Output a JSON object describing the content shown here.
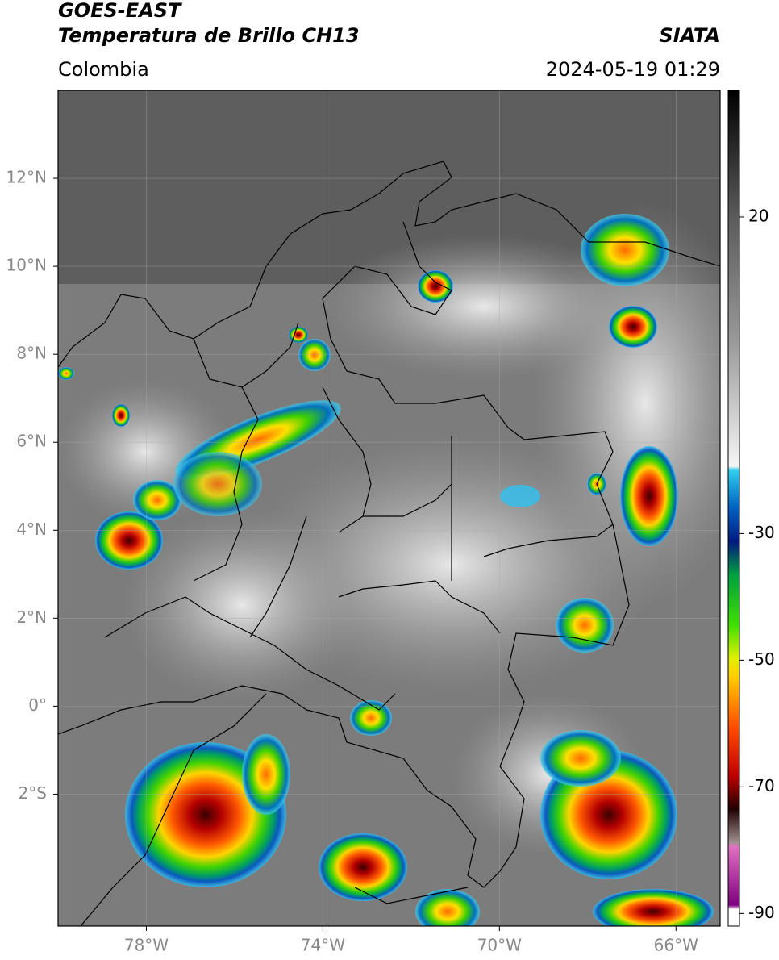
{
  "header": {
    "title": "GOES-EAST",
    "subtitle": "Temperatura de Brillo CH13",
    "source": "SIATA",
    "region": "Colombia",
    "datetime": "2024-05-19 01:29"
  },
  "map": {
    "xlim": [
      -80,
      -65
    ],
    "ylim": [
      -5,
      14
    ],
    "xticks": [
      {
        "value": -78,
        "label": "78°W"
      },
      {
        "value": -74,
        "label": "74°W"
      },
      {
        "value": -70,
        "label": "70°W"
      },
      {
        "value": -66,
        "label": "66°W"
      }
    ],
    "yticks": [
      {
        "value": 12,
        "label": "12°N"
      },
      {
        "value": 10,
        "label": "10°N"
      },
      {
        "value": 8,
        "label": "8°N"
      },
      {
        "value": 6,
        "label": "6°N"
      },
      {
        "value": 4,
        "label": "4°N"
      },
      {
        "value": 2,
        "label": "2°N"
      },
      {
        "value": 0,
        "label": "0°"
      },
      {
        "value": -2,
        "label": "2°S"
      }
    ],
    "grid": true
  },
  "colorbar": {
    "lim": [
      -92,
      40
    ],
    "ticks": [
      20,
      -30,
      -50,
      -70,
      -90
    ]
  }
}
